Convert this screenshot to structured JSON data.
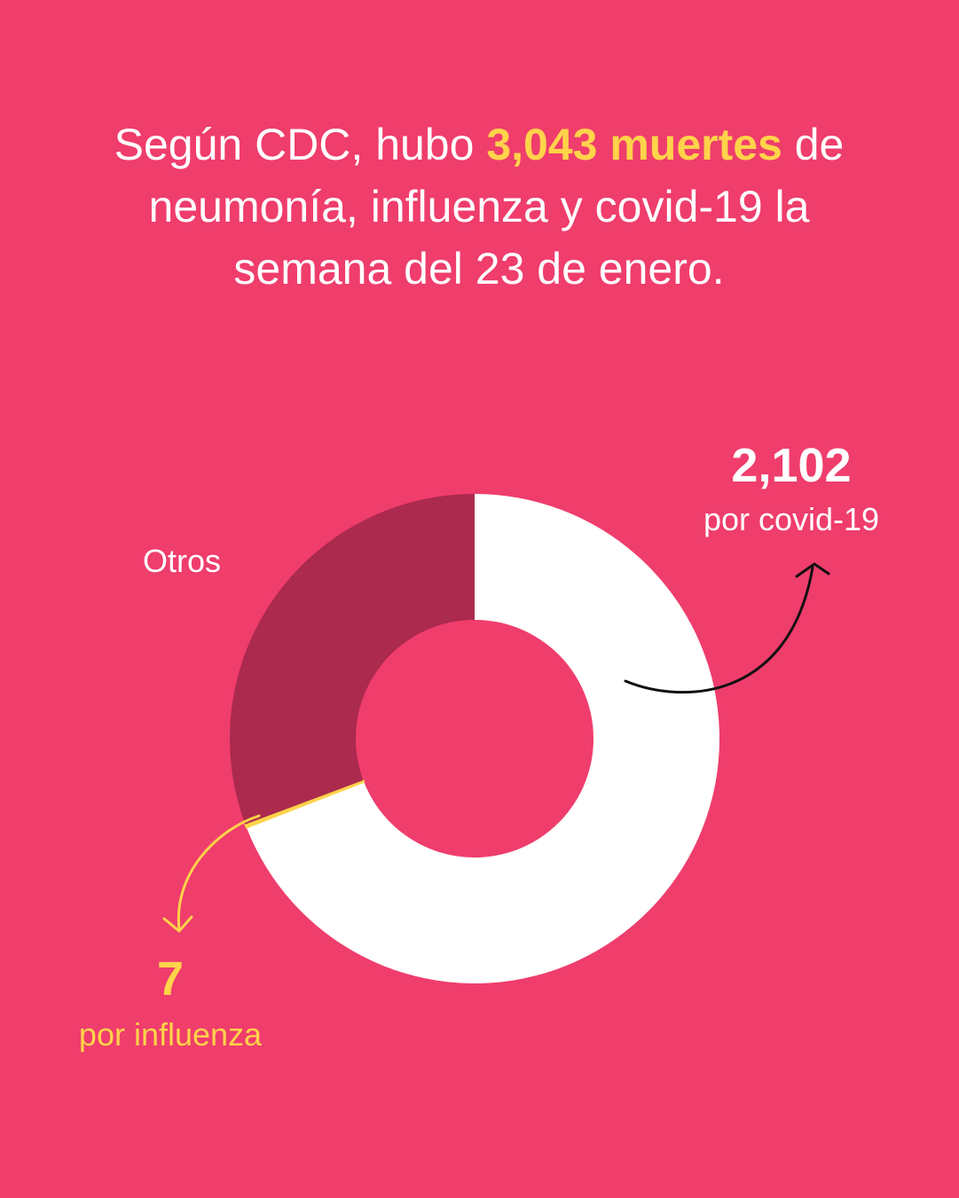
{
  "headline": {
    "part1": "Según CDC, hubo ",
    "highlight": "3,043 muertes",
    "part2": " de neumonía, influenza y covid-19 la semana del 23 de enero."
  },
  "colors": {
    "background": "#ef3d6c",
    "covid": "#ffffff",
    "otros": "#ab2a4e",
    "influenza": "#ffd34a",
    "arrow_covid": "#111111"
  },
  "chart_data": {
    "type": "pie",
    "style": "donut",
    "total": 3043,
    "slices": [
      {
        "key": "covid",
        "value": 2102,
        "color": "#ffffff"
      },
      {
        "key": "influenza",
        "value": 7,
        "color": "#ffd34a"
      },
      {
        "key": "otros",
        "label": "Otros",
        "value": 934,
        "color": "#ab2a4e"
      }
    ]
  },
  "labels": {
    "covid_value": "2,102",
    "covid_caption": "por covid-19",
    "influenza_value": "7",
    "influenza_caption": "por influenza",
    "otros": "Otros"
  }
}
